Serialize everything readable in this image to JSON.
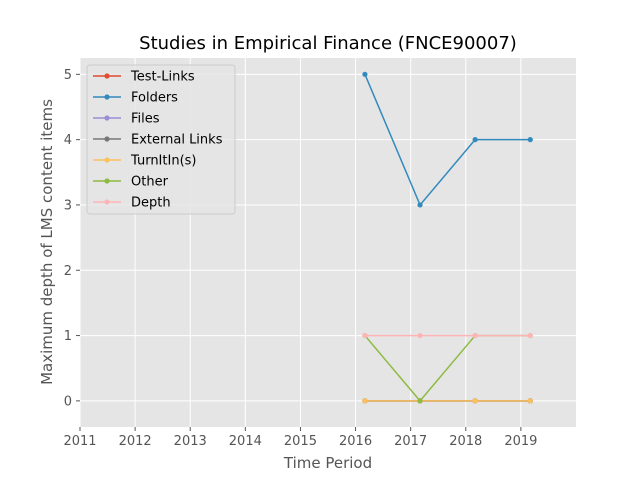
{
  "chart_data": {
    "type": "line",
    "title": "Studies in Empirical Finance (FNCE90007)",
    "xlabel": "Time Period",
    "ylabel": "Maximum depth of LMS content items",
    "xlim": [
      2011,
      2020
    ],
    "ylim": [
      -0.4,
      5.25
    ],
    "xticks": [
      "2011",
      "2012",
      "2013",
      "2014",
      "2015",
      "2016",
      "2017",
      "2018",
      "2019"
    ],
    "yticks": [
      "0",
      "1",
      "2",
      "3",
      "4",
      "5"
    ],
    "grid": true,
    "legend_position": "top-left",
    "x": [
      2016.17,
      2017.17,
      2018.17,
      2019.17
    ],
    "series": [
      {
        "name": "Test-Links",
        "color": "#E24A33",
        "values": [
          0,
          0,
          0,
          0
        ]
      },
      {
        "name": "Folders",
        "color": "#348ABD",
        "values": [
          5,
          3,
          4,
          4
        ]
      },
      {
        "name": "Files",
        "color": "#988ED5",
        "values": [
          0,
          0,
          0,
          0
        ]
      },
      {
        "name": "External Links",
        "color": "#777777",
        "values": [
          0,
          0,
          0,
          0
        ]
      },
      {
        "name": "TurnItIn(s)",
        "color": "#FBC15E",
        "values": [
          0,
          0,
          0,
          0
        ]
      },
      {
        "name": "Other",
        "color": "#8EBA42",
        "values": [
          1,
          0,
          1,
          1
        ]
      },
      {
        "name": "Depth",
        "color": "#FFB5B8",
        "values": [
          1,
          1,
          1,
          1
        ]
      }
    ]
  }
}
